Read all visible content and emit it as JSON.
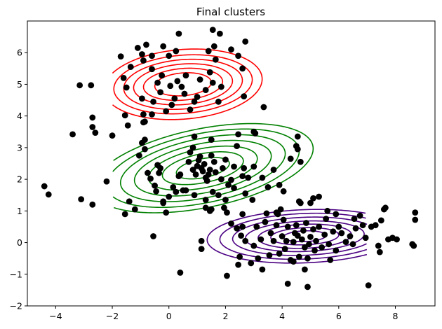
{
  "chart_data": {
    "type": "scatter",
    "title": "Final clusters",
    "xlabel": "",
    "ylabel": "",
    "xlim": [
      -5,
      9.4
    ],
    "ylim": [
      -2,
      7
    ],
    "xticks": [
      -4,
      -2,
      0,
      2,
      4,
      6,
      8
    ],
    "yticks": [
      -2,
      -1,
      0,
      1,
      2,
      3,
      4,
      5,
      6
    ],
    "grid": false,
    "legend": "none",
    "point_color": "#000000",
    "points": [
      [
        -4.4,
        1.78
      ],
      [
        -4.25,
        1.52
      ],
      [
        -3.1,
        1.37
      ],
      [
        -3.15,
        4.97
      ],
      [
        -2.75,
        4.97
      ],
      [
        -2.7,
        3.95
      ],
      [
        -3.4,
        3.42
      ],
      [
        -2.7,
        3.65
      ],
      [
        -2.6,
        3.47
      ],
      [
        -2.7,
        1.2
      ],
      [
        -2.0,
        3.38
      ],
      [
        -2.2,
        1.93
      ],
      [
        -1.7,
        5.88
      ],
      [
        -1.6,
        5.2
      ],
      [
        -1.5,
        4.9
      ],
      [
        -1.55,
        4.02
      ],
      [
        -1.45,
        3.7
      ],
      [
        -1.35,
        5.55
      ],
      [
        -1.1,
        6.15
      ],
      [
        -0.95,
        5.95
      ],
      [
        -0.9,
        5.75
      ],
      [
        -0.8,
        6.25
      ],
      [
        -0.6,
        5.48
      ],
      [
        -0.95,
        4.55
      ],
      [
        -0.9,
        4.05
      ],
      [
        -0.85,
        3.82
      ],
      [
        -0.6,
        4.05
      ],
      [
        -0.55,
        4.45
      ],
      [
        -0.4,
        5.05
      ],
      [
        -0.3,
        4.75
      ],
      [
        -0.2,
        6.2
      ],
      [
        -0.25,
        5.28
      ],
      [
        -0.1,
        4.15
      ],
      [
        0.05,
        4.95
      ],
      [
        0.1,
        4.35
      ],
      [
        0.2,
        4.55
      ],
      [
        0.3,
        5.1
      ],
      [
        0.45,
        4.92
      ],
      [
        0.55,
        4.7
      ],
      [
        0.6,
        5.28
      ],
      [
        0.75,
        4.2
      ],
      [
        0.9,
        4.45
      ],
      [
        1.0,
        4.6
      ],
      [
        1.1,
        5.15
      ],
      [
        1.3,
        4.82
      ],
      [
        1.45,
        5.38
      ],
      [
        1.55,
        5.05
      ],
      [
        1.65,
        5.78
      ],
      [
        1.75,
        4.45
      ],
      [
        1.85,
        4.92
      ],
      [
        1.4,
        6.05
      ],
      [
        1.6,
        6.2
      ],
      [
        1.55,
        6.72
      ],
      [
        1.8,
        6.6
      ],
      [
        2.2,
        6.1
      ],
      [
        2.45,
        5.9
      ],
      [
        2.7,
        6.35
      ],
      [
        2.6,
        5.5
      ],
      [
        2.65,
        4.62
      ],
      [
        3.35,
        4.28
      ],
      [
        0.35,
        6.6
      ],
      [
        0.25,
        6.05
      ],
      [
        -0.6,
        5.9
      ],
      [
        0.0,
        5.9
      ],
      [
        -0.9,
        3.8
      ],
      [
        -1.55,
        0.9
      ],
      [
        -1.4,
        1.3
      ],
      [
        -1.2,
        1.05
      ],
      [
        -1.05,
        2.75
      ],
      [
        -0.95,
        3.15
      ],
      [
        -0.85,
        2.95
      ],
      [
        -0.75,
        2.2
      ],
      [
        -0.65,
        2.02
      ],
      [
        -0.5,
        1.8
      ],
      [
        -0.4,
        2.45
      ],
      [
        -0.3,
        2.35
      ],
      [
        -0.2,
        1.3
      ],
      [
        -0.1,
        0.95
      ],
      [
        0.0,
        1.45
      ],
      [
        0.15,
        1.75
      ],
      [
        0.25,
        1.6
      ],
      [
        0.35,
        2.1
      ],
      [
        0.5,
        1.65
      ],
      [
        0.6,
        1.65
      ],
      [
        0.7,
        2.55
      ],
      [
        0.75,
        2.85
      ],
      [
        0.85,
        3.0
      ],
      [
        0.85,
        2.3
      ],
      [
        0.95,
        2.15
      ],
      [
        1.0,
        2.42
      ],
      [
        1.05,
        2.6
      ],
      [
        1.1,
        2.72
      ],
      [
        1.15,
        2.35
      ],
      [
        1.2,
        2.25
      ],
      [
        1.25,
        2.48
      ],
      [
        1.3,
        2.05
      ],
      [
        1.35,
        1.95
      ],
      [
        1.4,
        2.15
      ],
      [
        1.45,
        2.3
      ],
      [
        1.5,
        2.75
      ],
      [
        1.6,
        2.55
      ],
      [
        1.65,
        2.22
      ],
      [
        1.75,
        1.5
      ],
      [
        1.85,
        2.0
      ],
      [
        1.9,
        2.35
      ],
      [
        2.0,
        2.62
      ],
      [
        2.1,
        1.82
      ],
      [
        2.2,
        1.98
      ],
      [
        2.3,
        2.4
      ],
      [
        2.4,
        3.05
      ],
      [
        2.45,
        3.42
      ],
      [
        2.6,
        2.1
      ],
      [
        2.65,
        2.35
      ],
      [
        2.7,
        1.55
      ],
      [
        1.5,
        1.05
      ],
      [
        1.3,
        1.35
      ],
      [
        2.3,
        1.72
      ],
      [
        2.8,
        2.05
      ],
      [
        3.0,
        2.4
      ],
      [
        3.3,
        2.05
      ],
      [
        3.5,
        1.75
      ],
      [
        3.7,
        2.3
      ],
      [
        3.9,
        1.82
      ],
      [
        4.05,
        1.62
      ],
      [
        4.3,
        2.65
      ],
      [
        4.5,
        3.05
      ],
      [
        4.55,
        2.95
      ],
      [
        4.55,
        3.35
      ],
      [
        4.65,
        2.55
      ],
      [
        4.6,
        1.3
      ],
      [
        2.0,
        1.35
      ],
      [
        -0.55,
        0.2
      ],
      [
        0.4,
        -0.95
      ],
      [
        -0.2,
        1.25
      ],
      [
        0.9,
        3.35
      ],
      [
        3.0,
        3.5
      ],
      [
        3.05,
        3.45
      ],
      [
        1.5,
        3.25
      ],
      [
        -0.85,
        3.25
      ],
      [
        2.95,
        1.35
      ],
      [
        1.15,
        0.05
      ],
      [
        1.15,
        -0.2
      ],
      [
        1.3,
        1.1
      ],
      [
        1.45,
        1.0
      ],
      [
        0.9,
        1.5
      ],
      [
        -0.35,
        2.2
      ],
      [
        -0.45,
        1.62
      ],
      [
        0.4,
        2.15
      ],
      [
        1.55,
        1.6
      ],
      [
        1.95,
        1.1
      ],
      [
        2.05,
        0.95
      ],
      [
        2.2,
        0.6
      ],
      [
        2.4,
        0.45
      ],
      [
        2.5,
        -0.45
      ],
      [
        2.55,
        0.22
      ],
      [
        2.6,
        0.5
      ],
      [
        2.7,
        0.05
      ],
      [
        2.9,
        -0.65
      ],
      [
        3.0,
        -0.1
      ],
      [
        3.1,
        0.5
      ],
      [
        3.15,
        -0.5
      ],
      [
        3.25,
        0.1
      ],
      [
        3.4,
        0.65
      ],
      [
        3.45,
        0.92
      ],
      [
        3.55,
        -0.4
      ],
      [
        3.6,
        0.3
      ],
      [
        3.7,
        0.05
      ],
      [
        3.8,
        0.55
      ],
      [
        3.85,
        0.9
      ],
      [
        3.9,
        -0.35
      ],
      [
        4.0,
        0.2
      ],
      [
        4.05,
        0.72
      ],
      [
        4.1,
        -0.2
      ],
      [
        4.15,
        0.05
      ],
      [
        4.2,
        0.5
      ],
      [
        4.3,
        -0.55
      ],
      [
        4.4,
        0.02
      ],
      [
        4.45,
        0.3
      ],
      [
        4.5,
        0.55
      ],
      [
        4.55,
        0.22
      ],
      [
        4.6,
        -0.45
      ],
      [
        4.7,
        0.1
      ],
      [
        4.75,
        0.38
      ],
      [
        4.8,
        -0.15
      ],
      [
        4.85,
        0.62
      ],
      [
        4.9,
        -0.5
      ],
      [
        4.95,
        -0.05
      ],
      [
        5.0,
        0.18
      ],
      [
        5.1,
        0.42
      ],
      [
        5.15,
        -0.25
      ],
      [
        5.2,
        0.05
      ],
      [
        5.3,
        0.5
      ],
      [
        5.4,
        -0.15
      ],
      [
        5.5,
        0.25
      ],
      [
        5.55,
        0.75
      ],
      [
        5.65,
        -0.05
      ],
      [
        5.8,
        0.35
      ],
      [
        5.9,
        -0.25
      ],
      [
        6.0,
        0.5
      ],
      [
        6.1,
        0.3
      ],
      [
        6.25,
        0.02
      ],
      [
        6.4,
        0.2
      ],
      [
        6.5,
        -0.05
      ],
      [
        6.6,
        0.45
      ],
      [
        6.75,
        0.85
      ],
      [
        6.85,
        0.55
      ],
      [
        6.95,
        0.15
      ],
      [
        7.05,
        -1.35
      ],
      [
        7.15,
        0.5
      ],
      [
        7.3,
        0.55
      ],
      [
        7.45,
        -0.3
      ],
      [
        7.6,
        1.05
      ],
      [
        7.75,
        0.1
      ],
      [
        7.9,
        0.15
      ],
      [
        8.05,
        0.1
      ],
      [
        8.6,
        -0.05
      ],
      [
        8.7,
        0.95
      ],
      [
        8.7,
        0.72
      ],
      [
        8.65,
        -0.1
      ],
      [
        7.5,
        0.7
      ],
      [
        5.0,
        1.25
      ],
      [
        5.1,
        1.4
      ],
      [
        5.3,
        1.45
      ],
      [
        5.6,
        1.0
      ],
      [
        4.65,
        1.25
      ],
      [
        4.8,
        -0.85
      ],
      [
        4.2,
        -1.3
      ],
      [
        4.9,
        -1.4
      ],
      [
        2.05,
        -1.05
      ],
      [
        2.45,
        -0.7
      ],
      [
        3.3,
        -0.85
      ],
      [
        4.4,
        -0.6
      ],
      [
        3.8,
        0.95
      ],
      [
        5.9,
        0.9
      ],
      [
        6.55,
        0.75
      ],
      [
        7.65,
        1.1
      ],
      [
        7.4,
        -0.1
      ],
      [
        2.6,
        0.9
      ],
      [
        3.95,
        1.05
      ],
      [
        5.7,
        -0.55
      ]
    ],
    "series": [
      {
        "name": "",
        "color": "#ff0000",
        "center": [
          0.5,
          5.0
        ],
        "radius_a": [
          1.0,
          1.4,
          1.75,
          2.1,
          2.45,
          2.8
        ],
        "radius_b": [
          0.36,
          0.5,
          0.64,
          0.78,
          0.92,
          1.1
        ],
        "angle_deg": 4
      },
      {
        "name": "",
        "color": "#008000",
        "center": [
          1.2,
          2.35
        ],
        "radius_a": [
          0.95,
          1.45,
          1.95,
          2.45,
          2.95,
          3.45,
          3.95
        ],
        "radius_b": [
          0.3,
          0.46,
          0.62,
          0.78,
          0.94,
          1.1,
          1.25
        ],
        "angle_deg": 10
      },
      {
        "name": "",
        "color": "#4b0082",
        "center": [
          4.8,
          0.2
        ],
        "radius_a": [
          0.75,
          1.2,
          1.65,
          2.1,
          2.55,
          3.0,
          3.45
        ],
        "radius_b": [
          0.17,
          0.27,
          0.38,
          0.48,
          0.6,
          0.72,
          0.84
        ],
        "angle_deg": 2
      }
    ]
  }
}
